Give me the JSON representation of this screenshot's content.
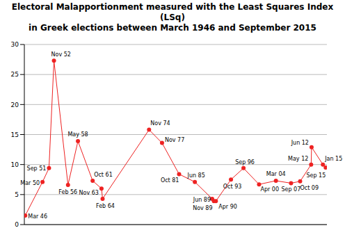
{
  "chart_data": {
    "type": "line",
    "title": "Electoral Malapportionment measured with the Least Squares Index (LSq)\nin Greek elections between March 1946 and September 2015",
    "x": [
      1946.2,
      1950.2,
      1951.7,
      1952.85,
      1956.1,
      1958.4,
      1961.8,
      1963.85,
      1964.1,
      1974.85,
      1977.85,
      1981.8,
      1985.45,
      1989.45,
      1989.85,
      1990.3,
      1993.8,
      1996.7,
      2000.3,
      2004.2,
      2007.7,
      2009.8,
      2012.35,
      2012.45,
      2015.07,
      2015.72
    ],
    "values": [
      1.5,
      7.1,
      9.4,
      27.3,
      6.6,
      13.9,
      7.3,
      6.0,
      4.3,
      15.8,
      13.6,
      8.4,
      7.1,
      4.3,
      3.9,
      3.9,
      7.5,
      9.4,
      6.7,
      7.3,
      6.9,
      7.2,
      10.0,
      12.9,
      10.0,
      9.5
    ],
    "point_labels": [
      "Mar 46",
      "Mar 50",
      "Sep 51",
      "Nov 52",
      "Feb 56",
      "May 58",
      "Oct 61",
      "Nov 63",
      "Feb 64",
      "Nov 74",
      "Nov 77",
      "Oct 81",
      "Jun 85",
      "Jun 89",
      "Nov 89",
      "Apr 90",
      "Oct 93",
      "Sep 96",
      "Apr 00",
      "Mar 04",
      "Sep 07",
      "Oct 09",
      "May 12",
      "Jun 12",
      "Jan 15",
      "Sep 15"
    ],
    "color": "#ee2222",
    "marker": "circle",
    "xlim": [
      1946,
      2016
    ],
    "ylim": [
      0,
      30
    ],
    "yticks": [
      0,
      5,
      10,
      15,
      20,
      25,
      30
    ],
    "grid": true,
    "tick_labels": "y"
  }
}
